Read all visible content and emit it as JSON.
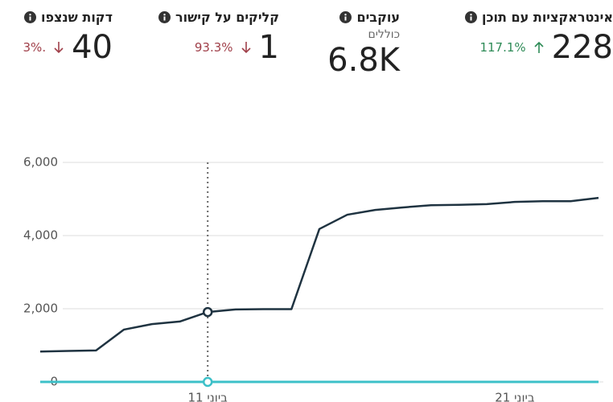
{
  "metrics": [
    {
      "title": "אינטראקציות עם תוכן",
      "value": "228",
      "change": "117.1%",
      "direction": "up"
    },
    {
      "title": "עוקבים",
      "subtitle": "כוללים",
      "value": "6.8K"
    },
    {
      "title": "קליקים על קישור",
      "value": "1",
      "change": "93.3%",
      "direction": "down"
    },
    {
      "title": "דקות שנצפו",
      "value": "40",
      "change": ".3%",
      "direction": "down"
    }
  ],
  "chart_data": {
    "type": "line",
    "categories": [
      null,
      null,
      null,
      null,
      null,
      null,
      "11 ביוני",
      null,
      null,
      null,
      null,
      null,
      null,
      null,
      null,
      null,
      null,
      "21 ביוני",
      null,
      null,
      null
    ],
    "series": [
      {
        "color": "#1f3341",
        "values": [
          830,
          845,
          860,
          1430,
          1580,
          1650,
          1910,
          1980,
          1990,
          1990,
          4180,
          4570,
          4700,
          4770,
          4830,
          4840,
          4860,
          4920,
          4940,
          4940,
          5030
        ]
      },
      {
        "color": "#3cc0c8",
        "values": [
          0,
          0,
          0,
          0,
          0,
          0,
          0,
          0,
          0,
          0,
          0,
          0,
          0,
          0,
          0,
          0,
          0,
          0,
          0,
          0,
          0
        ]
      }
    ],
    "highlight_index": 6,
    "ylim": [
      0,
      6000
    ],
    "yticks": [
      0,
      {
        "value": 2000,
        "label": "2,000"
      },
      {
        "value": 4000,
        "label": "4,000"
      },
      {
        "value": 6000,
        "label": "6,000"
      }
    ],
    "grid": true
  }
}
